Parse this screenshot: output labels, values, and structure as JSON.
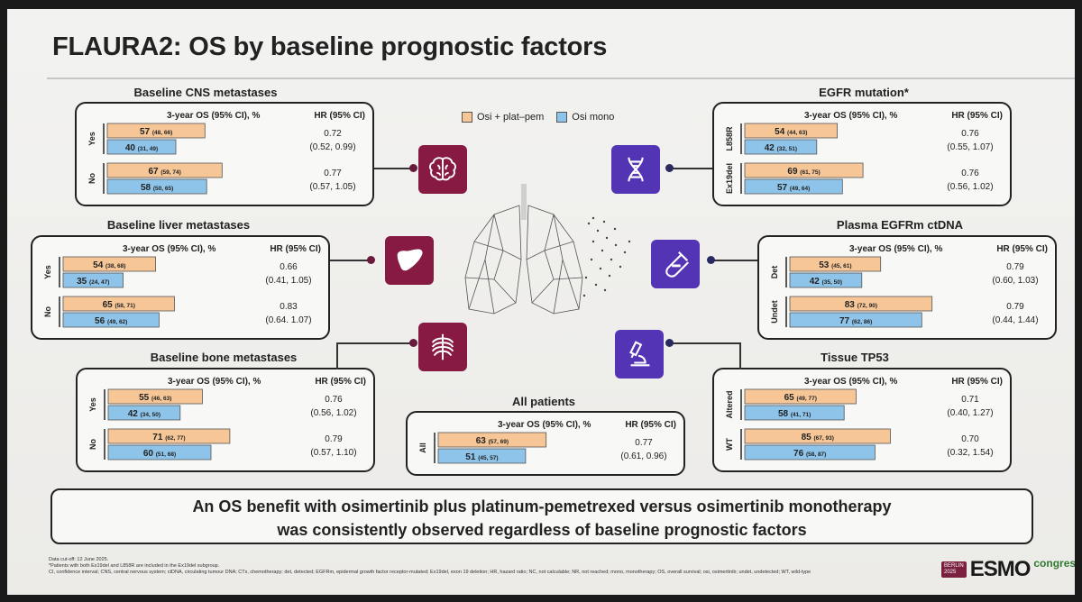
{
  "title": "FLAURA2: OS by baseline prognostic factors",
  "legend": {
    "osi_plat": "Osi + plat–pem",
    "osi_mono": "Osi mono"
  },
  "colors": {
    "osi_plat": "#f6c697",
    "osi_mono": "#8ec4ea",
    "icon_purple": "#5334b4",
    "icon_maroon": "#861a42",
    "dot": "#6a1a3a"
  },
  "col_header_os": "3-year OS (95% CI), %",
  "col_header_hr": "HR (95% CI)",
  "chart_data": [
    {
      "type": "bar",
      "id": "cns",
      "title": "Baseline CNS metastases",
      "rows": [
        {
          "label": "Yes",
          "osi_plat": {
            "value": 57,
            "ci": "(48, 66)"
          },
          "osi_mono": {
            "value": 40,
            "ci": "(31, 49)"
          },
          "hr": "0.72",
          "hr_ci": "(0.52, 0.99)"
        },
        {
          "label": "No",
          "osi_plat": {
            "value": 67,
            "ci": "(59, 74)"
          },
          "osi_mono": {
            "value": 58,
            "ci": "(50, 65)"
          },
          "hr": "0.77",
          "hr_ci": "(0.57, 1.05)"
        }
      ]
    },
    {
      "type": "bar",
      "id": "liver",
      "title": "Baseline liver metastases",
      "rows": [
        {
          "label": "Yes",
          "osi_plat": {
            "value": 54,
            "ci": "(38, 68)"
          },
          "osi_mono": {
            "value": 35,
            "ci": "(24, 47)"
          },
          "hr": "0.66",
          "hr_ci": "(0.41, 1.05)"
        },
        {
          "label": "No",
          "osi_plat": {
            "value": 65,
            "ci": "(58, 71)"
          },
          "osi_mono": {
            "value": 56,
            "ci": "(49, 62)"
          },
          "hr": "0.83",
          "hr_ci": "(0.64. 1.07)"
        }
      ]
    },
    {
      "type": "bar",
      "id": "bone",
      "title": "Baseline bone metastases",
      "rows": [
        {
          "label": "Yes",
          "osi_plat": {
            "value": 55,
            "ci": "(46, 63)"
          },
          "osi_mono": {
            "value": 42,
            "ci": "(34, 50)"
          },
          "hr": "0.76",
          "hr_ci": "(0.56, 1.02)"
        },
        {
          "label": "No",
          "osi_plat": {
            "value": 71,
            "ci": "(62, 77)"
          },
          "osi_mono": {
            "value": 60,
            "ci": "(51, 68)"
          },
          "hr": "0.79",
          "hr_ci": "(0.57, 1.10)"
        }
      ]
    },
    {
      "type": "bar",
      "id": "all",
      "title": "All patients",
      "rows": [
        {
          "label": "All",
          "osi_plat": {
            "value": 63,
            "ci": "(57, 69)"
          },
          "osi_mono": {
            "value": 51,
            "ci": "(45, 57)"
          },
          "hr": "0.77",
          "hr_ci": "(0.61, 0.96)"
        }
      ]
    },
    {
      "type": "bar",
      "id": "egfr",
      "title": "EGFR mutation*",
      "rows": [
        {
          "label": "L858R",
          "osi_plat": {
            "value": 54,
            "ci": "(44, 63)"
          },
          "osi_mono": {
            "value": 42,
            "ci": "(32, 51)"
          },
          "hr": "0.76",
          "hr_ci": "(0.55, 1.07)"
        },
        {
          "label": "Ex19del",
          "osi_plat": {
            "value": 69,
            "ci": "(61, 75)"
          },
          "osi_mono": {
            "value": 57,
            "ci": "(49, 64)"
          },
          "hr": "0.76",
          "hr_ci": "(0.56, 1.02)"
        }
      ]
    },
    {
      "type": "bar",
      "id": "ctdna",
      "title": "Plasma EGFRm ctDNA",
      "rows": [
        {
          "label": "Det",
          "osi_plat": {
            "value": 53,
            "ci": "(45, 61)"
          },
          "osi_mono": {
            "value": 42,
            "ci": "(35, 50)"
          },
          "hr": "0.79",
          "hr_ci": "(0.60, 1.03)"
        },
        {
          "label": "Undet",
          "osi_plat": {
            "value": 83,
            "ci": "(72, 90)"
          },
          "osi_mono": {
            "value": 77,
            "ci": "(62, 86)"
          },
          "hr": "0.79",
          "hr_ci": "(0.44, 1.44)"
        }
      ]
    },
    {
      "type": "bar",
      "id": "tp53",
      "title": "Tissue TP53",
      "rows": [
        {
          "label": "Altered",
          "osi_plat": {
            "value": 65,
            "ci": "(49, 77)"
          },
          "osi_mono": {
            "value": 58,
            "ci": "(41, 71)"
          },
          "hr": "0.71",
          "hr_ci": "(0.40, 1.27)"
        },
        {
          "label": "WT",
          "osi_plat": {
            "value": 85,
            "ci": "(67, 93)"
          },
          "osi_mono": {
            "value": 76,
            "ci": "(58, 87)"
          },
          "hr": "0.70",
          "hr_ci": "(0.32, 1.54)"
        }
      ]
    }
  ],
  "icons": {
    "cns": "brain-icon",
    "liver": "liver-icon",
    "bone": "ribcage-icon",
    "egfr": "dna-icon",
    "ctdna": "test-tube-icon",
    "tp53": "microscope-icon",
    "center": "lungs-icon"
  },
  "conclusion": {
    "line1": "An OS benefit with osimertinib plus platinum-pemetrexed versus osimertinib monotherapy",
    "line2": "was consistently observed regardless of baseline prognostic factors"
  },
  "footnotes": {
    "line1": "Data cut-off: 12 June 2025.",
    "line2": "*Patients with both Ex19del and L858R are included in the Ex19del subgroup.",
    "line3": "CI, confidence interval; CNS, central nervous system; ctDNA, circulating tumour DNA; CTx, chemotherapy; det, detected; EGFRm, epidermal growth factor receptor-mutated; Ex19del, exon 19 deletion; HR, hazard ratio; NC, not calculable; NR, not reached; mono, monotherapy; OS, overall survival; osi, osimertinib; undet, undetected; WT, wild-type"
  },
  "logo": {
    "badge_line1": "BERLIN",
    "badge_line2": "2025",
    "word": "ESMO",
    "suffix": "congress"
  }
}
